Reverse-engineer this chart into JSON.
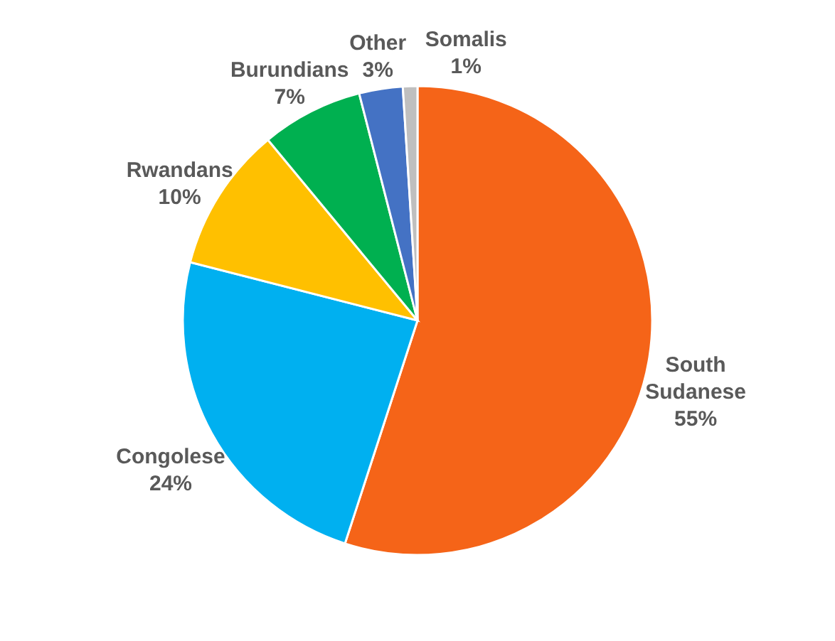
{
  "chart_data": {
    "type": "pie",
    "categories": [
      "South Sudanese",
      "Congolese",
      "Rwandans",
      "Burundians",
      "Other",
      "Somalis"
    ],
    "values": [
      55,
      24,
      10,
      7,
      3,
      1
    ],
    "colors": [
      "#f56418",
      "#00b0f0",
      "#ffc000",
      "#00b050",
      "#4472c4",
      "#bfbfbf"
    ],
    "value_labels": [
      "55%",
      "24%",
      "10%",
      "7%",
      "3%",
      "1%"
    ]
  }
}
